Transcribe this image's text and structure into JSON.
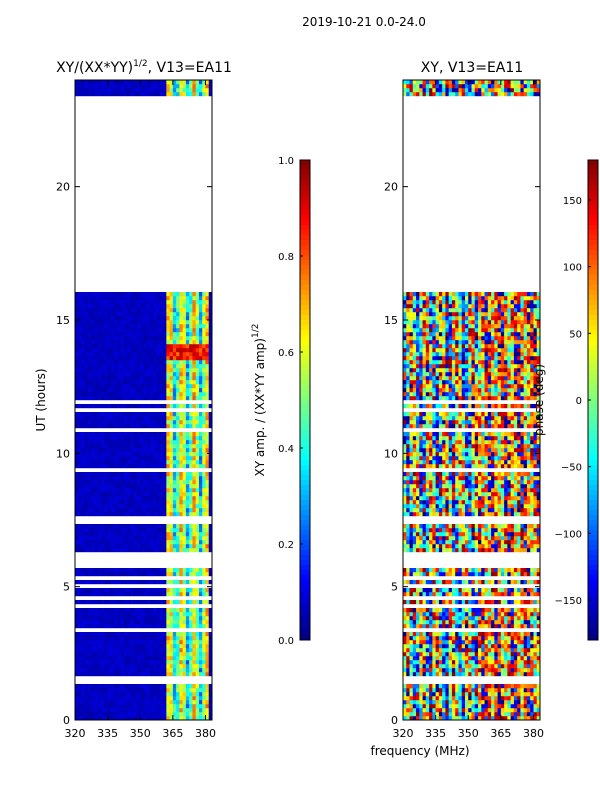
{
  "figure": {
    "suptitle": "2019-10-21 0.0-24.0",
    "shared_xlabel": "frequency (MHz)"
  },
  "colors": {
    "jet": [
      "#00007f",
      "#0000ff",
      "#007fff",
      "#00ffff",
      "#7fff7f",
      "#ffff00",
      "#ff7f00",
      "#ff0000",
      "#7f0000"
    ],
    "gap": "#ffffff",
    "frame": "#000000"
  },
  "chart_data": [
    {
      "type": "heatmap",
      "title_main": "XY/(XX*YY)",
      "title_exp": "1/2",
      "title_rest": ", V13=EA11",
      "xlabel": "",
      "ylabel": "UT (hours)",
      "xlim": [
        320,
        383
      ],
      "ylim": [
        0,
        24
      ],
      "xticks": [
        320,
        335,
        350,
        365,
        380
      ],
      "yticks": [
        0,
        5,
        10,
        15,
        20
      ],
      "data_gap_hours": [
        16.0,
        23.4
      ],
      "colorbar": {
        "label_main": "XY amp. / (XX*YY amp)",
        "label_exp": "1/2",
        "range": [
          0.0,
          1.0
        ],
        "ticks": [
          "0.0",
          "0.2",
          "0.4",
          "0.6",
          "0.8",
          "1.0"
        ]
      }
    },
    {
      "type": "heatmap",
      "title": "XY, V13=EA11",
      "xlabel": "",
      "ylabel": "",
      "xlim": [
        320,
        383
      ],
      "ylim": [
        0,
        24
      ],
      "xticks": [
        320,
        335,
        350,
        365,
        380
      ],
      "yticks": [
        0,
        5,
        10,
        15,
        20
      ],
      "data_gap_hours": [
        16.0,
        23.4
      ],
      "colorbar": {
        "label": "phase (deg)",
        "range": [
          -180,
          180
        ],
        "ticks": [
          "−150",
          "−100",
          "−50",
          "0",
          "50",
          "100",
          "150"
        ]
      }
    }
  ]
}
